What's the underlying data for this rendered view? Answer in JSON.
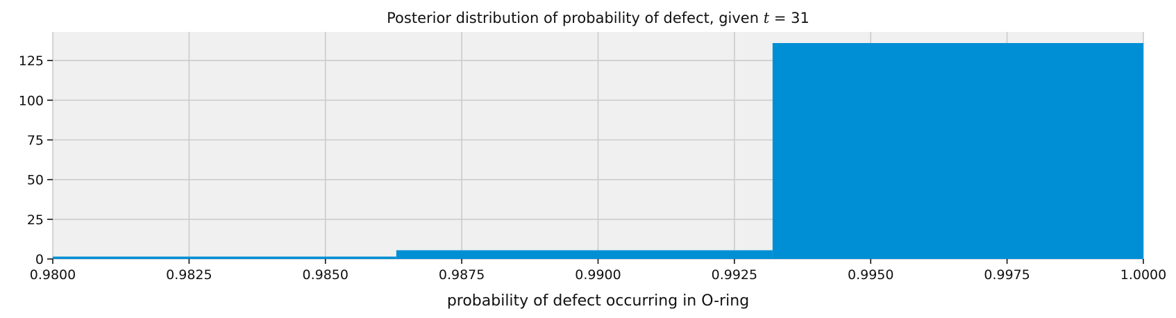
{
  "chart_data": {
    "type": "bar",
    "title_prefix": "Posterior distribution of probability of defect, given ",
    "title_var": "t",
    "title_suffix": " = 31",
    "xlabel": "probability of defect occurring in O-ring",
    "ylabel": "",
    "xlim": [
      0.98,
      1.0
    ],
    "ylim": [
      0,
      143
    ],
    "xticks": [
      "0.9800",
      "0.9825",
      "0.9850",
      "0.9875",
      "0.9900",
      "0.9925",
      "0.9950",
      "0.9975",
      "1.0000"
    ],
    "yticks": [
      "0",
      "25",
      "50",
      "75",
      "100",
      "125"
    ],
    "grid": true,
    "bins": [
      {
        "x0": 0.98,
        "x1": 0.9863,
        "value": 1.5
      },
      {
        "x0": 0.9863,
        "x1": 0.9932,
        "value": 5.5
      },
      {
        "x0": 0.9932,
        "x1": 1.0,
        "value": 136
      }
    ],
    "colors": {
      "bar": "#008fd5",
      "background": "#f0f0f0",
      "grid": "#cbcbcb"
    }
  }
}
